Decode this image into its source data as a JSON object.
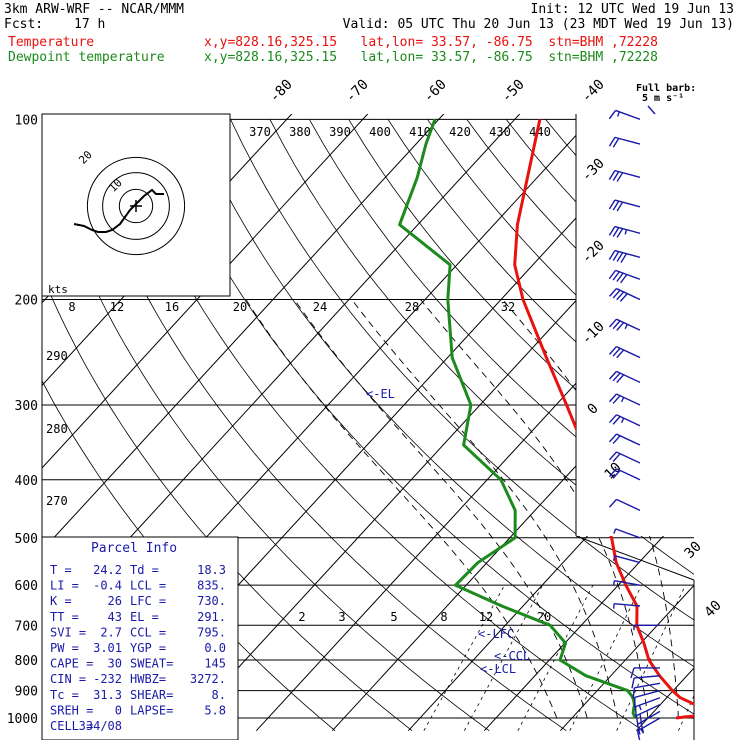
{
  "header": {
    "model": "3km ARW-WRF -- NCAR/MMM",
    "init": "Init: 12 UTC Wed 19 Jun 13",
    "fcst_label": "Fcst:",
    "fcst_value": "17 h",
    "valid": "Valid: 05 UTC Thu 20 Jun 13 (23 MDT Wed 19 Jun 13)",
    "temp_label": "Temperature",
    "temp_info": "x,y=828.16,325.15   lat,lon= 33.57, -86.75  stn=BHM ,72228",
    "dew_label": "Dewpoint temperature",
    "dew_info": "x,y=828.16,325.15   lat,lon= 33.57, -86.75  stn=BHM ,72228"
  },
  "colors": {
    "temperature": "#e8120e",
    "dewpoint": "#1d8a1d",
    "annotation": "#1a1aa8",
    "wind": "#1a1aa8"
  },
  "wind_legend": {
    "line1": "Full barb:",
    "line2": "5 m s⁻¹"
  },
  "hodograph": {
    "unit": "kts",
    "ring_labels": [
      "10",
      "20"
    ]
  },
  "mixing_ratio_labels": [
    "2",
    "3",
    "5",
    "8",
    "12",
    "20"
  ],
  "theta_labels": [
    "8",
    "12",
    "16",
    "20",
    "24",
    "28",
    "32"
  ],
  "dry_adiabat_labels": [
    "270",
    "280",
    "290"
  ],
  "theta_e_labels": [
    "370",
    "380",
    "390",
    "400",
    "410",
    "420",
    "430",
    "440"
  ],
  "parcel_annotations": {
    "el": "<-EL",
    "lfc": "<-LFC",
    "ccl": "<-CCL",
    "lcl": "<-LCL"
  },
  "parcel_info": {
    "title": "Parcel Info",
    "rows": [
      [
        "T =",
        "24.2",
        "Td =",
        "18.3"
      ],
      [
        "LI =",
        "-0.4",
        "LCL =",
        "835."
      ],
      [
        "K =",
        "26",
        "LFC =",
        "730."
      ],
      [
        "TT =",
        "43",
        "EL =",
        "291."
      ],
      [
        "SVI =",
        "2.7",
        "CCL =",
        "795."
      ],
      [
        "PW =",
        "3.01",
        "YGP =",
        "0.0"
      ],
      [
        "CAPE =",
        "30",
        "SWEAT=",
        "145"
      ],
      [
        "CIN =",
        "-232",
        "HWBZ=",
        "3272."
      ],
      [
        "Tc =",
        "31.3",
        "SHEAR=",
        "8."
      ],
      [
        "SREH =",
        "0",
        "LAPSE=",
        "5.8"
      ],
      [
        "CELL =",
        "334/08",
        "",
        ""
      ]
    ]
  },
  "chart_data": {
    "type": "line",
    "pressure_ticks": [
      100,
      200,
      300,
      400,
      500,
      600,
      700,
      800,
      900,
      1000
    ],
    "isotherm_labels": [
      "-80",
      "-70",
      "-60",
      "-50",
      "-40",
      "-30",
      "-20",
      "-10",
      "0",
      "10",
      "30",
      "40"
    ],
    "series": [
      {
        "name": "Temperature",
        "points": [
          [
            1000,
            23.7
          ],
          [
            985,
            27.8
          ],
          [
            970,
            26.8
          ],
          [
            950,
            24.6
          ],
          [
            925,
            21.8
          ],
          [
            900,
            19.9
          ],
          [
            850,
            16.4
          ],
          [
            800,
            13.1
          ],
          [
            750,
            10.4
          ],
          [
            700,
            7.3
          ],
          [
            650,
            5.0
          ],
          [
            600,
            1.0
          ],
          [
            550,
            -3.0
          ],
          [
            500,
            -6.6
          ],
          [
            450,
            -11.4
          ],
          [
            400,
            -16.6
          ],
          [
            350,
            -21.6
          ],
          [
            300,
            -28.6
          ],
          [
            250,
            -37.0
          ],
          [
            200,
            -47.1
          ],
          [
            175,
            -52.4
          ],
          [
            150,
            -56.9
          ],
          [
            125,
            -61.3
          ],
          [
            100,
            -66.7
          ]
        ]
      },
      {
        "name": "Dewpoint temperature",
        "points": [
          [
            1000,
            18.3
          ],
          [
            980,
            17.4
          ],
          [
            950,
            16.6
          ],
          [
            925,
            15.6
          ],
          [
            900,
            14.0
          ],
          [
            850,
            6.7
          ],
          [
            800,
            1.4
          ],
          [
            750,
            0.1
          ],
          [
            700,
            -4.1
          ],
          [
            650,
            -12.8
          ],
          [
            600,
            -21.4
          ],
          [
            550,
            -21.2
          ],
          [
            500,
            -19.3
          ],
          [
            450,
            -22.6
          ],
          [
            400,
            -28.2
          ],
          [
            350,
            -37.3
          ],
          [
            300,
            -41.2
          ],
          [
            250,
            -49.4
          ],
          [
            200,
            -57.0
          ],
          [
            175,
            -60.9
          ],
          [
            150,
            -72.4
          ],
          [
            125,
            -75.8
          ],
          [
            110,
            -78.7
          ],
          [
            100,
            -80.5
          ]
        ]
      }
    ],
    "hodograph": [
      [
        -31,
        9
      ],
      [
        -26,
        10
      ],
      [
        -22,
        12
      ],
      [
        -19,
        13
      ],
      [
        -15,
        13
      ],
      [
        -12,
        12
      ],
      [
        -8,
        9
      ],
      [
        -3,
        2
      ],
      [
        4,
        -5
      ],
      [
        8,
        -8
      ],
      [
        10,
        -6
      ],
      [
        14,
        -6
      ]
    ],
    "wind_barbs": [
      {
        "p": 1000,
        "spd": 8,
        "dir": 240
      },
      {
        "p": 975,
        "spd": 10,
        "dir": 240
      },
      {
        "p": 950,
        "spd": 10,
        "dir": 245
      },
      {
        "p": 925,
        "spd": 8,
        "dir": 250
      },
      {
        "p": 900,
        "spd": 6,
        "dir": 255
      },
      {
        "p": 875,
        "spd": 5,
        "dir": 260
      },
      {
        "p": 850,
        "spd": 4,
        "dir": 265
      },
      {
        "p": 825,
        "spd": 4,
        "dir": 270
      },
      {
        "p": 700,
        "spd": 3,
        "dir": 270
      },
      {
        "p": 650,
        "spd": 2,
        "dir": 275
      },
      {
        "p": 600,
        "spd": 2,
        "dir": 280
      },
      {
        "p": 550,
        "spd": 2,
        "dir": 285
      },
      {
        "p": 500,
        "spd": 3,
        "dir": 290
      },
      {
        "p": 450,
        "spd": 6,
        "dir": 295
      },
      {
        "p": 400,
        "spd": 9,
        "dir": 295
      },
      {
        "p": 375,
        "spd": 10,
        "dir": 295
      },
      {
        "p": 350,
        "spd": 11,
        "dir": 295
      },
      {
        "p": 325,
        "spd": 12,
        "dir": 295
      },
      {
        "p": 300,
        "spd": 13,
        "dir": 295
      },
      {
        "p": 275,
        "spd": 14,
        "dir": 295
      },
      {
        "p": 250,
        "spd": 16,
        "dir": 295
      },
      {
        "p": 225,
        "spd": 18,
        "dir": 295
      },
      {
        "p": 200,
        "spd": 21,
        "dir": 295
      },
      {
        "p": 185,
        "spd": 21,
        "dir": 290
      },
      {
        "p": 170,
        "spd": 20,
        "dir": 285
      },
      {
        "p": 155,
        "spd": 18,
        "dir": 285
      },
      {
        "p": 140,
        "spd": 16,
        "dir": 285
      },
      {
        "p": 125,
        "spd": 14,
        "dir": 285
      },
      {
        "p": 110,
        "spd": 10,
        "dir": 285
      },
      {
        "p": 100,
        "spd": 8,
        "dir": 290
      }
    ]
  }
}
